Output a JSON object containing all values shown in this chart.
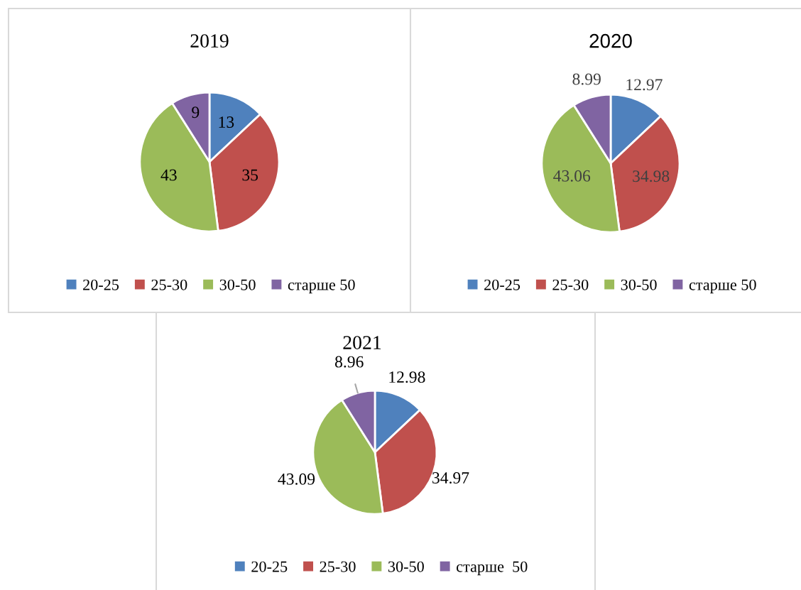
{
  "chart_data": [
    {
      "type": "pie",
      "title": "2019",
      "categories": [
        "20-25",
        "25-30",
        "30-50",
        "старше 50"
      ],
      "values": [
        13,
        35,
        43,
        9
      ],
      "colors": [
        "#4f81bd",
        "#c0504d",
        "#9bbb59",
        "#8064a2"
      ],
      "data_labels": true,
      "legend": "bottom"
    },
    {
      "type": "pie",
      "title": "2020",
      "categories": [
        "20-25",
        "25-30",
        "30-50",
        "старше 50"
      ],
      "values": [
        12.97,
        34.98,
        43.06,
        8.99
      ],
      "colors": [
        "#4f81bd",
        "#c0504d",
        "#9bbb59",
        "#8064a2"
      ],
      "data_labels": true,
      "legend": "bottom"
    },
    {
      "type": "pie",
      "title": "2021",
      "categories": [
        "20-25",
        "25-30",
        "30-50",
        "старше  50"
      ],
      "values": [
        12.98,
        34.97,
        43.09,
        8.96
      ],
      "colors": [
        "#4f81bd",
        "#c0504d",
        "#9bbb59",
        "#8064a2"
      ],
      "data_labels": true,
      "legend": "bottom"
    }
  ]
}
